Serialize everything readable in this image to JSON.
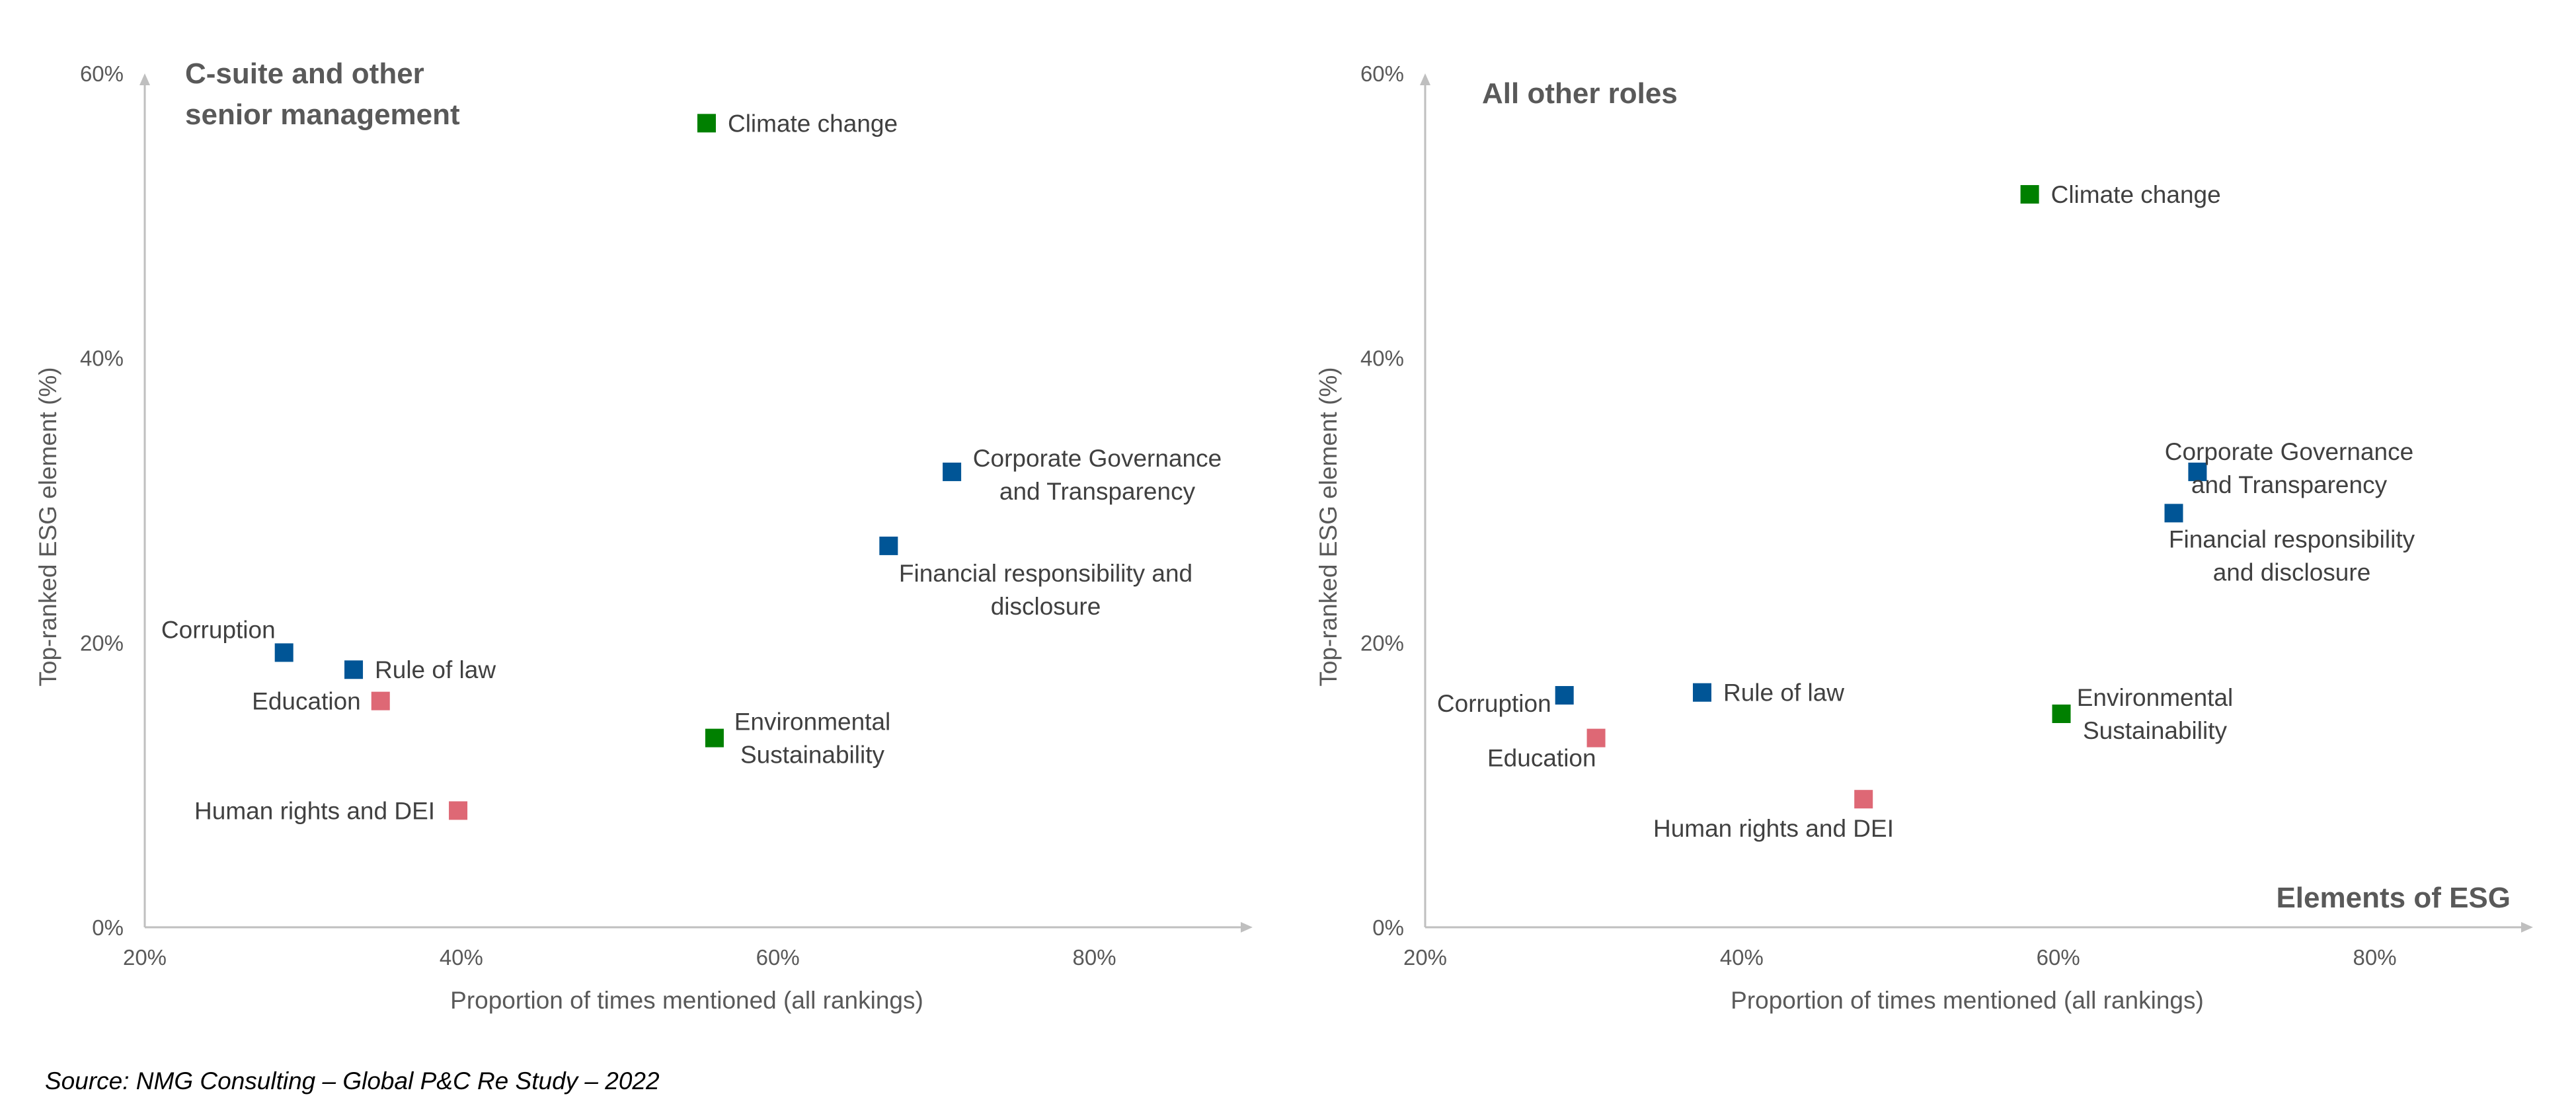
{
  "chart_data": [
    {
      "type": "scatter",
      "title": "C-suite and other senior management",
      "xlabel": "Proportion of times mentioned (all rankings)",
      "ylabel": "Top-ranked ESG element (%)",
      "xlim": [
        20,
        90
      ],
      "ylim": [
        0,
        60
      ],
      "xticks": [
        "20%",
        "40%",
        "60%",
        "80%"
      ],
      "yticks": [
        "0%",
        "20%",
        "40%",
        "60%"
      ],
      "points": [
        {
          "label": "Climate change",
          "x": 55.5,
          "y": 56.5,
          "color": "#008000"
        },
        {
          "label": "Corporate Governance and Transparency",
          "x": 71,
          "y": 32,
          "color": "#005596"
        },
        {
          "label": "Financial responsibility and disclosure",
          "x": 67,
          "y": 26.8,
          "color": "#005596"
        },
        {
          "label": "Corruption",
          "x": 28.8,
          "y": 19.3,
          "color": "#005596"
        },
        {
          "label": "Rule of law",
          "x": 33.2,
          "y": 18.1,
          "color": "#005596"
        },
        {
          "label": "Education",
          "x": 34.9,
          "y": 15.9,
          "color": "#DE6875"
        },
        {
          "label": "Environmental Sustainability",
          "x": 56,
          "y": 13.3,
          "color": "#008000"
        },
        {
          "label": "Human rights and DEI",
          "x": 39.8,
          "y": 8.2,
          "color": "#DE6875"
        }
      ]
    },
    {
      "type": "scatter",
      "title": "All other roles",
      "xlabel": "Proportion of times mentioned (all rankings)",
      "ylabel": "Top-ranked ESG element (%)",
      "xlim": [
        20,
        90
      ],
      "ylim": [
        0,
        60
      ],
      "xticks": [
        "20%",
        "40%",
        "60%",
        "80%"
      ],
      "yticks": [
        "0%",
        "20%",
        "40%",
        "60%"
      ],
      "annotation": "Elements of ESG",
      "points": [
        {
          "label": "Climate change",
          "x": 58.2,
          "y": 51.5,
          "color": "#008000"
        },
        {
          "label": "Corporate Governance and Transparency",
          "x": 68.8,
          "y": 32,
          "color": "#005596"
        },
        {
          "label": "Financial responsibility and disclosure",
          "x": 67.3,
          "y": 29.1,
          "color": "#005596"
        },
        {
          "label": "Corruption",
          "x": 28.8,
          "y": 16.3,
          "color": "#005596"
        },
        {
          "label": "Rule of law",
          "x": 37.5,
          "y": 16.5,
          "color": "#005596"
        },
        {
          "label": "Environmental Sustainability",
          "x": 60.2,
          "y": 15,
          "color": "#008000"
        },
        {
          "label": "Education",
          "x": 30.8,
          "y": 13.3,
          "color": "#DE6875"
        },
        {
          "label": "Human rights and DEI",
          "x": 47.7,
          "y": 9,
          "color": "#DE6875"
        }
      ]
    }
  ],
  "footer": "Source: NMG Consulting – Global P&C Re Study – 2022"
}
